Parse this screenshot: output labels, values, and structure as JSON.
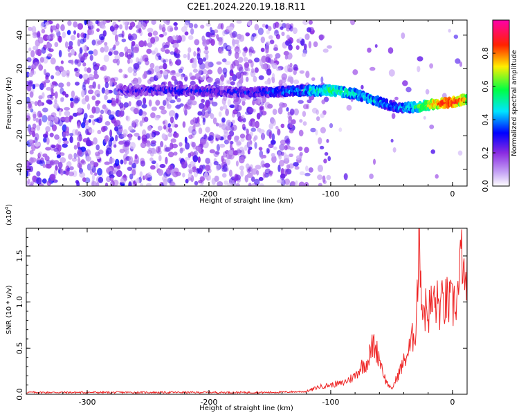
{
  "title": "C2E1.2024.220.19.18.R11",
  "chart_data": [
    {
      "type": "heatmap",
      "xlabel": "Height of straight line (km)",
      "ylabel": "Frequency (Hz)",
      "xlim": [
        -350,
        12
      ],
      "ylim": [
        -50,
        49
      ],
      "xticks": [
        -300,
        -200,
        -100,
        0
      ],
      "yticks": [
        -40,
        -20,
        0,
        20,
        40
      ],
      "colorbar": {
        "label": "Normalized spectral amplitude",
        "range": [
          0,
          1
        ],
        "ticks": [
          "0.0",
          "0.2",
          "0.4",
          "0.6",
          "0.8"
        ],
        "colors": [
          "#ffffff",
          "#8a2be2",
          "#0000ff",
          "#00ffff",
          "#00ff00",
          "#ffff00",
          "#ff0000",
          "#ff00ff"
        ]
      },
      "ridge": {
        "description_points_x": [
          -270,
          -240,
          -210,
          -180,
          -150,
          -120,
          -100,
          -80,
          -60,
          -45,
          -30,
          -15,
          0,
          12
        ],
        "center_freq_hz": [
          7,
          7,
          7,
          6,
          6,
          7,
          7,
          5,
          0,
          -3,
          -3,
          -1,
          0,
          2
        ],
        "peak_amplitude": [
          0.25,
          0.3,
          0.3,
          0.3,
          0.35,
          0.45,
          0.6,
          0.5,
          0.45,
          0.4,
          0.55,
          0.8,
          0.9,
          0.7
        ]
      }
    },
    {
      "type": "line",
      "xlabel": "Height of straight line (km)",
      "ylabel": "SNR (10 * v/v)",
      "yscale_label": "(x10",
      "yscale_exp": "4",
      "yscale_close": ")",
      "xlim": [
        -350,
        12
      ],
      "ylim": [
        0,
        1.8
      ],
      "xticks": [
        -300,
        -200,
        -100,
        0
      ],
      "yticks": [
        "0.0",
        "0.5",
        "1.0",
        "1.5"
      ],
      "color": "#ee2222",
      "series": [
        {
          "x": [
            -350,
            -300,
            -250,
            -200,
            -150,
            -120,
            -110,
            -100,
            -90,
            -80,
            -75,
            -70,
            -65,
            -60,
            -55,
            -50,
            -45,
            -40,
            -35,
            -30,
            -27,
            -25,
            -20,
            -15,
            -10,
            -5,
            0,
            5,
            8,
            10,
            12
          ],
          "y": [
            0.02,
            0.02,
            0.02,
            0.02,
            0.02,
            0.03,
            0.08,
            0.1,
            0.12,
            0.2,
            0.3,
            0.35,
            0.55,
            0.4,
            0.15,
            0.05,
            0.2,
            0.35,
            0.5,
            0.75,
            1.8,
            0.95,
            0.9,
            1.0,
            0.95,
            1.0,
            0.95,
            1.1,
            1.6,
            1.0,
            1.4
          ]
        }
      ]
    }
  ]
}
